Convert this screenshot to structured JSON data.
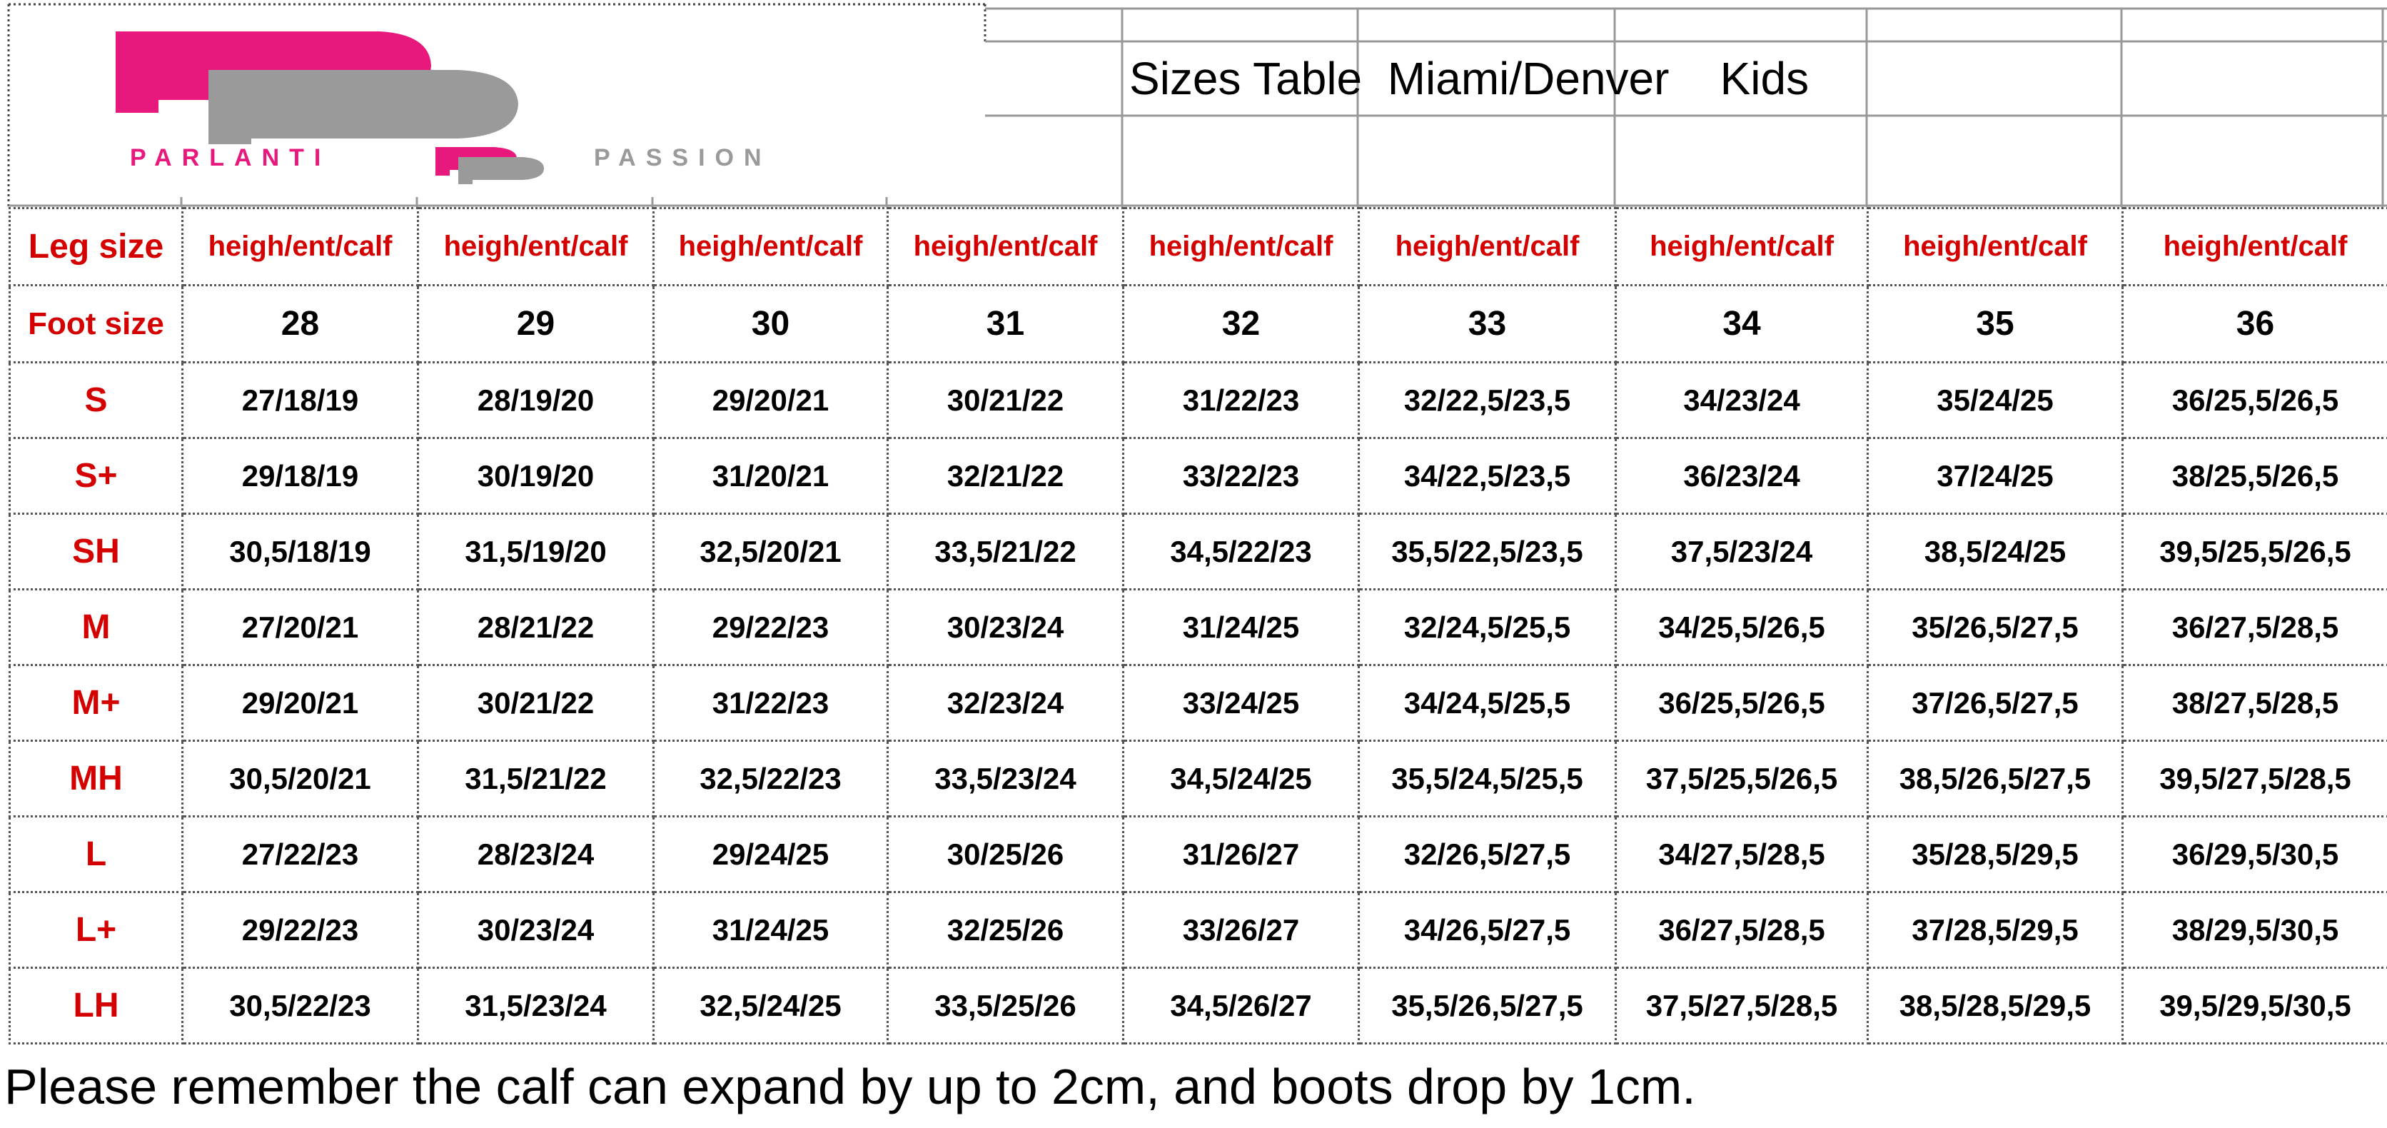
{
  "header": {
    "title": "Sizes Table  Miami/Denver    Kids",
    "logo_text": "PARLANTI PASSION",
    "logo_colors": {
      "pink": "#e8197d",
      "grey": "#9a9a9a"
    }
  },
  "table": {
    "leg_label": "Leg size",
    "foot_label": "Foot size",
    "leg_values": [
      "heigh/ent/calf",
      "heigh/ent/calf",
      "heigh/ent/calf",
      "heigh/ent/calf",
      "heigh/ent/calf",
      "heigh/ent/calf",
      "heigh/ent/calf",
      "heigh/ent/calf",
      "heigh/ent/calf"
    ],
    "foot_sizes": [
      "28",
      "29",
      "30",
      "31",
      "32",
      "33",
      "34",
      "35",
      "36"
    ],
    "rows": [
      {
        "label": "S",
        "values": [
          "27/18/19",
          "28/19/20",
          "29/20/21",
          "30/21/22",
          "31/22/23",
          "32/22,5/23,5",
          "34/23/24",
          "35/24/25",
          "36/25,5/26,5"
        ]
      },
      {
        "label": "S+",
        "values": [
          "29/18/19",
          "30/19/20",
          "31/20/21",
          "32/21/22",
          "33/22/23",
          "34/22,5/23,5",
          "36/23/24",
          "37/24/25",
          "38/25,5/26,5"
        ]
      },
      {
        "label": "SH",
        "values": [
          "30,5/18/19",
          "31,5/19/20",
          "32,5/20/21",
          "33,5/21/22",
          "34,5/22/23",
          "35,5/22,5/23,5",
          "37,5/23/24",
          "38,5/24/25",
          "39,5/25,5/26,5"
        ]
      },
      {
        "label": "M",
        "values": [
          "27/20/21",
          "28/21/22",
          "29/22/23",
          "30/23/24",
          "31/24/25",
          "32/24,5/25,5",
          "34/25,5/26,5",
          "35/26,5/27,5",
          "36/27,5/28,5"
        ]
      },
      {
        "label": "M+",
        "values": [
          "29/20/21",
          "30/21/22",
          "31/22/23",
          "32/23/24",
          "33/24/25",
          "34/24,5/25,5",
          "36/25,5/26,5",
          "37/26,5/27,5",
          "38/27,5/28,5"
        ]
      },
      {
        "label": "MH",
        "values": [
          "30,5/20/21",
          "31,5/21/22",
          "32,5/22/23",
          "33,5/23/24",
          "34,5/24/25",
          "35,5/24,5/25,5",
          "37,5/25,5/26,5",
          "38,5/26,5/27,5",
          "39,5/27,5/28,5"
        ]
      },
      {
        "label": "L",
        "values": [
          "27/22/23",
          "28/23/24",
          "29/24/25",
          "30/25/26",
          "31/26/27",
          "32/26,5/27,5",
          "34/27,5/28,5",
          "35/28,5/29,5",
          "36/29,5/30,5"
        ]
      },
      {
        "label": "L+",
        "values": [
          "29/22/23",
          "30/23/24",
          "31/24/25",
          "32/25/26",
          "33/26/27",
          "34/26,5/27,5",
          "36/27,5/28,5",
          "37/28,5/29,5",
          "38/29,5/30,5"
        ]
      },
      {
        "label": "LH",
        "values": [
          "30,5/22/23",
          "31,5/23/24",
          "32,5/24/25",
          "33,5/25/26",
          "34,5/26/27",
          "35,5/26,5/27,5",
          "37,5/27,5/28,5",
          "38,5/28,5/29,5",
          "39,5/29,5/30,5"
        ]
      }
    ]
  },
  "footnote": "Please remember the calf can expand by up to 2cm, and boots drop by 1cm."
}
